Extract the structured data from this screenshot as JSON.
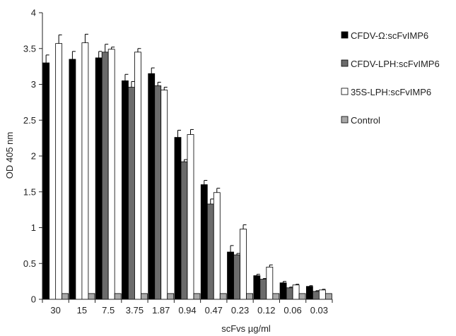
{
  "chart_data": {
    "type": "bar",
    "xlabel": "scFvs  µg/ml",
    "ylabel": "OD 405 nm",
    "ylim": [
      0,
      4
    ],
    "yticks": [
      "0",
      "0.5",
      "1",
      "1.5",
      "2",
      "2.5",
      "3",
      "3.5",
      "4"
    ],
    "grid": false,
    "legend_position": "right",
    "error_bars": true,
    "categories": [
      "30",
      "15",
      "7.5",
      "3.75",
      "1.87",
      "0.94",
      "0.47",
      "0.23",
      "0.12",
      "0.06",
      "0.03"
    ],
    "series": [
      {
        "name": "CFDV-Ω:scFvIMP6",
        "color": "#000000",
        "values": [
          3.3,
          3.35,
          3.37,
          3.05,
          3.15,
          2.26,
          1.6,
          0.66,
          0.33,
          0.23,
          0.18
        ],
        "errors": [
          0.11,
          0.11,
          0.09,
          0.09,
          0.08,
          0.1,
          0.06,
          0.09,
          0.02,
          0.02,
          0.01
        ]
      },
      {
        "name": "CFDV-LPH:scFvIMP6",
        "color": "#6b6b6b",
        "values": [
          null,
          null,
          3.45,
          2.96,
          2.98,
          1.92,
          1.33,
          0.62,
          0.28,
          0.16,
          0.11
        ],
        "errors": [
          null,
          null,
          0.11,
          0.08,
          0.05,
          0.03,
          0.07,
          0.02,
          0.01,
          0.01,
          0.01
        ]
      },
      {
        "name": "35S-LPH:scFvIMP6",
        "color": "#ffffff",
        "values": [
          3.57,
          3.58,
          3.49,
          3.45,
          2.92,
          2.3,
          1.49,
          0.98,
          0.45,
          0.2,
          0.13
        ],
        "errors": [
          0.12,
          0.12,
          0.03,
          0.05,
          0.04,
          0.07,
          0.06,
          0.06,
          0.03,
          0.01,
          0.01
        ]
      },
      {
        "name": "Control",
        "color": "#a8a8a8",
        "values": [
          0.08,
          0.08,
          0.08,
          0.08,
          0.08,
          0.08,
          0.08,
          0.08,
          0.08,
          0.08,
          0.08
        ],
        "errors": [
          null,
          null,
          null,
          null,
          null,
          null,
          null,
          null,
          null,
          null,
          null
        ]
      }
    ]
  }
}
